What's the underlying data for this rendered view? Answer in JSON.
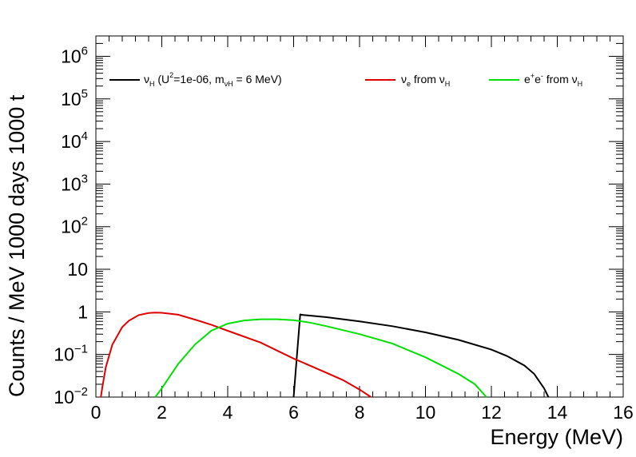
{
  "chart_data": {
    "type": "line",
    "xlabel": "Energy (MeV)",
    "ylabel": "Counts / MeV 1000 days 1000 t",
    "xlim": [
      0,
      16
    ],
    "ylim": [
      0.01,
      3000000
    ],
    "yscale": "log",
    "grid": false,
    "legend_placement": "top",
    "x_ticks": [
      "0",
      "2",
      "4",
      "6",
      "8",
      "10",
      "12",
      "14",
      "16"
    ],
    "y_ticks": [
      {
        "base": "10",
        "exp": "−2",
        "value": 0.01
      },
      {
        "base": "10",
        "exp": "−1",
        "value": 0.1
      },
      {
        "base": "1",
        "exp": "",
        "value": 1
      },
      {
        "base": "10",
        "exp": "",
        "value": 10
      },
      {
        "base": "10",
        "exp": "2",
        "value": 100
      },
      {
        "base": "10",
        "exp": "3",
        "value": 1000
      },
      {
        "base": "10",
        "exp": "4",
        "value": 10000
      },
      {
        "base": "10",
        "exp": "5",
        "value": 100000
      },
      {
        "base": "10",
        "exp": "6",
        "value": 1000000
      }
    ],
    "legend": {
      "s0": {
        "a": "ν",
        "b": "H",
        "c": " (U",
        "d": "2",
        "e": "=1e-06, m",
        "f": "νH",
        "g": " = 6 MeV)"
      },
      "s1": {
        "a": "ν",
        "b": "e",
        "c": " from ν",
        "d": "H"
      },
      "s2": {
        "a": "e",
        "b": "+",
        "c": "e",
        "d": "-",
        "e": " from ν",
        "f": "H"
      }
    },
    "series": [
      {
        "color": "#000000",
        "x": [
          6.0,
          6.2,
          6.21,
          7,
          8,
          9,
          10,
          11,
          12,
          12.5,
          13,
          13.3,
          13.6,
          13.73
        ],
        "y": [
          0.01,
          0.9,
          0.86,
          0.75,
          0.6,
          0.46,
          0.33,
          0.22,
          0.13,
          0.09,
          0.055,
          0.035,
          0.016,
          0.01
        ]
      },
      {
        "color": "#e00000",
        "x": [
          0.15,
          0.2,
          0.3,
          0.5,
          0.8,
          1.0,
          1.3,
          1.6,
          1.8,
          2.0,
          2.5,
          3.0,
          3.5,
          4.0,
          5.0,
          6.0,
          7.0,
          7.5,
          8.0,
          8.35
        ],
        "y": [
          0.01,
          0.018,
          0.05,
          0.17,
          0.44,
          0.62,
          0.84,
          0.94,
          0.96,
          0.95,
          0.86,
          0.66,
          0.5,
          0.36,
          0.19,
          0.08,
          0.037,
          0.025,
          0.015,
          0.01
        ]
      },
      {
        "color": "#00e000",
        "x": [
          1.8,
          2.0,
          2.5,
          3.0,
          3.5,
          4.0,
          4.5,
          5.0,
          5.5,
          6.0,
          6.5,
          7.0,
          8.0,
          9.0,
          10.0,
          11.0,
          11.5,
          11.85
        ],
        "y": [
          0.01,
          0.016,
          0.06,
          0.17,
          0.36,
          0.53,
          0.63,
          0.67,
          0.67,
          0.64,
          0.56,
          0.46,
          0.3,
          0.18,
          0.086,
          0.035,
          0.02,
          0.01
        ]
      }
    ]
  }
}
